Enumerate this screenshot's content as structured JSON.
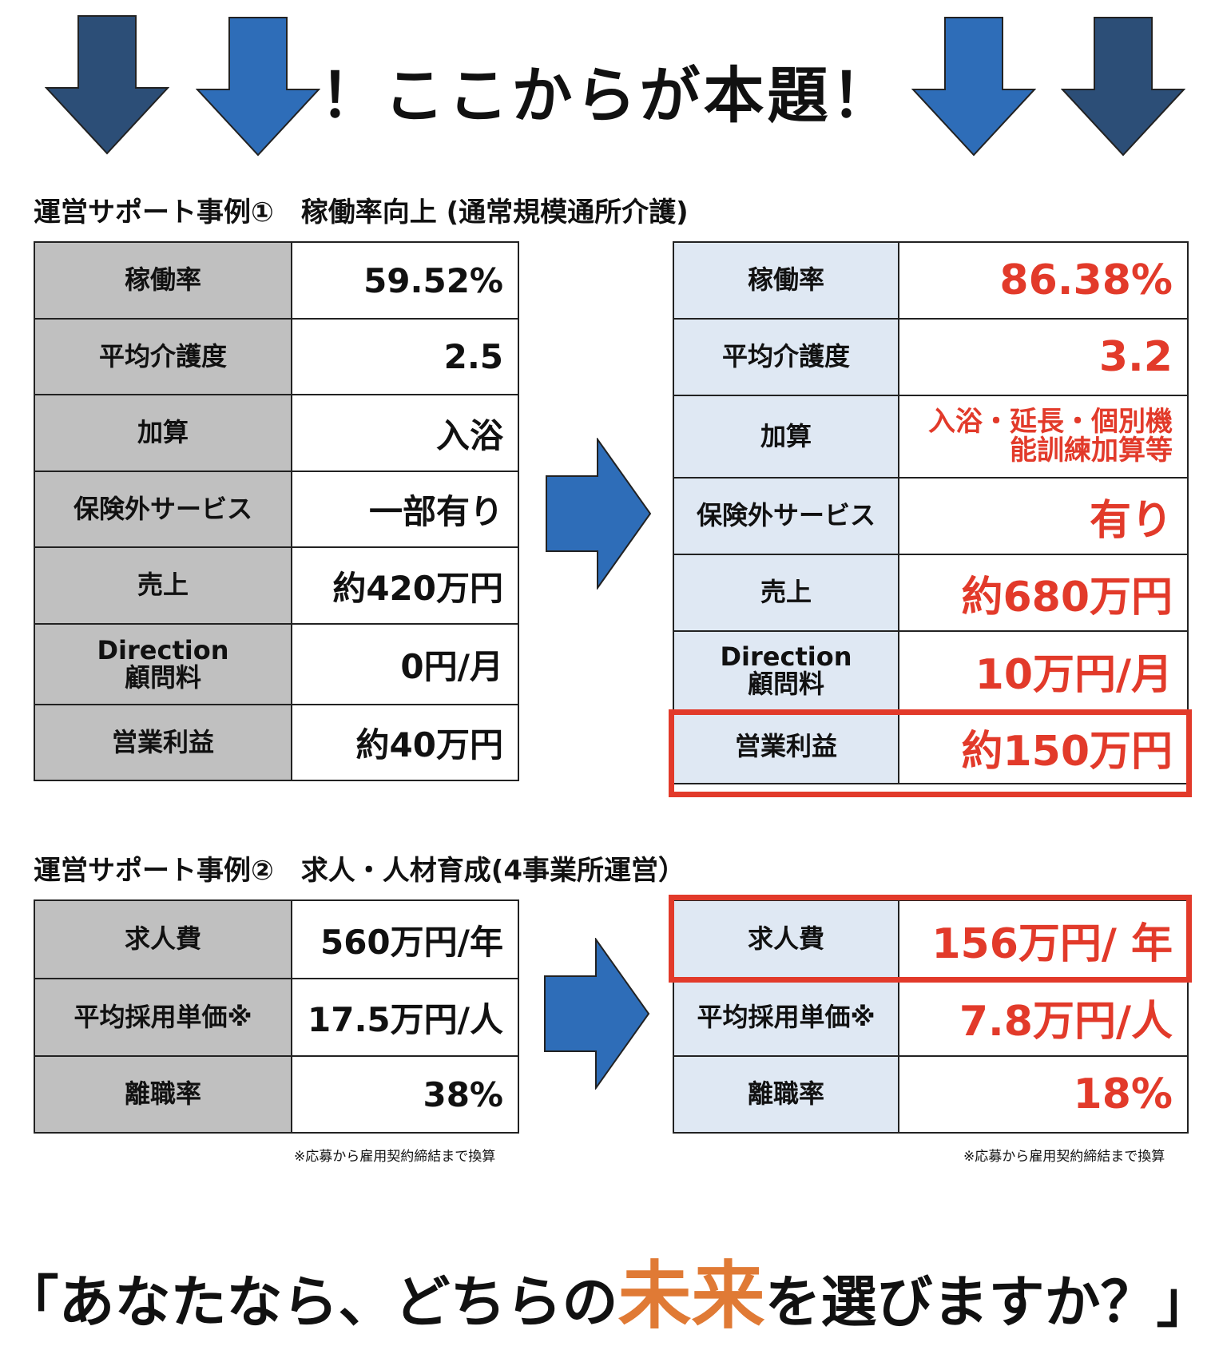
{
  "banner": {
    "text": "！ここからが本題！"
  },
  "case1": {
    "title": "運営サポート事例①　稼働率向上 (通常規模通所介護)",
    "before": [
      {
        "label": "稼働率",
        "value": "59.52%"
      },
      {
        "label": "平均介護度",
        "value": "2.5"
      },
      {
        "label": "加算",
        "value": "入浴"
      },
      {
        "label": "保険外サービス",
        "value": "一部有り"
      },
      {
        "label": "売上",
        "value": "約420万円"
      },
      {
        "label_line1": "Direction",
        "label_line2": "顧問料",
        "value": "0円/月"
      },
      {
        "label": "営業利益",
        "value": "約40万円"
      }
    ],
    "after": [
      {
        "label": "稼働率",
        "value": "86.38%"
      },
      {
        "label": "平均介護度",
        "value": "3.2"
      },
      {
        "label": "加算",
        "value_line1": "入浴・延長・個別機",
        "value_line2": "能訓練加算等"
      },
      {
        "label": "保険外サービス",
        "value": "有り"
      },
      {
        "label": "売上",
        "value": "約680万円"
      },
      {
        "label_line1": "Direction",
        "label_line2": "顧問料",
        "value": "10万円/月"
      },
      {
        "label": "営業利益",
        "value": "約150万円"
      }
    ]
  },
  "case2": {
    "title": "運営サポート事例②　求人・人材育成(4事業所運営）",
    "before": [
      {
        "label": "求人費",
        "value": "560万円/年"
      },
      {
        "label": "平均採用単価※",
        "value": "17.5万円/人"
      },
      {
        "label": "離職率",
        "value": "38%"
      }
    ],
    "after": [
      {
        "label": "求人費",
        "value": "156万円/ 年"
      },
      {
        "label": "平均採用単価※",
        "value": "7.8万円/人"
      },
      {
        "label": "離職率",
        "value": "18%"
      }
    ],
    "note": "※応募から雇用契約締結まで換算"
  },
  "closing": {
    "prefix": "「あなたなら、どちらの",
    "accent": "未来",
    "suffix": "を選びますか？」"
  },
  "colors": {
    "arrow_dark": "#2c4e77",
    "arrow_blue": "#2e6db8",
    "accent_red": "#e23a2a",
    "accent_orange": "#e07a35",
    "left_label_bg": "#c0c0c0",
    "right_label_bg": "#dfe8f3"
  }
}
